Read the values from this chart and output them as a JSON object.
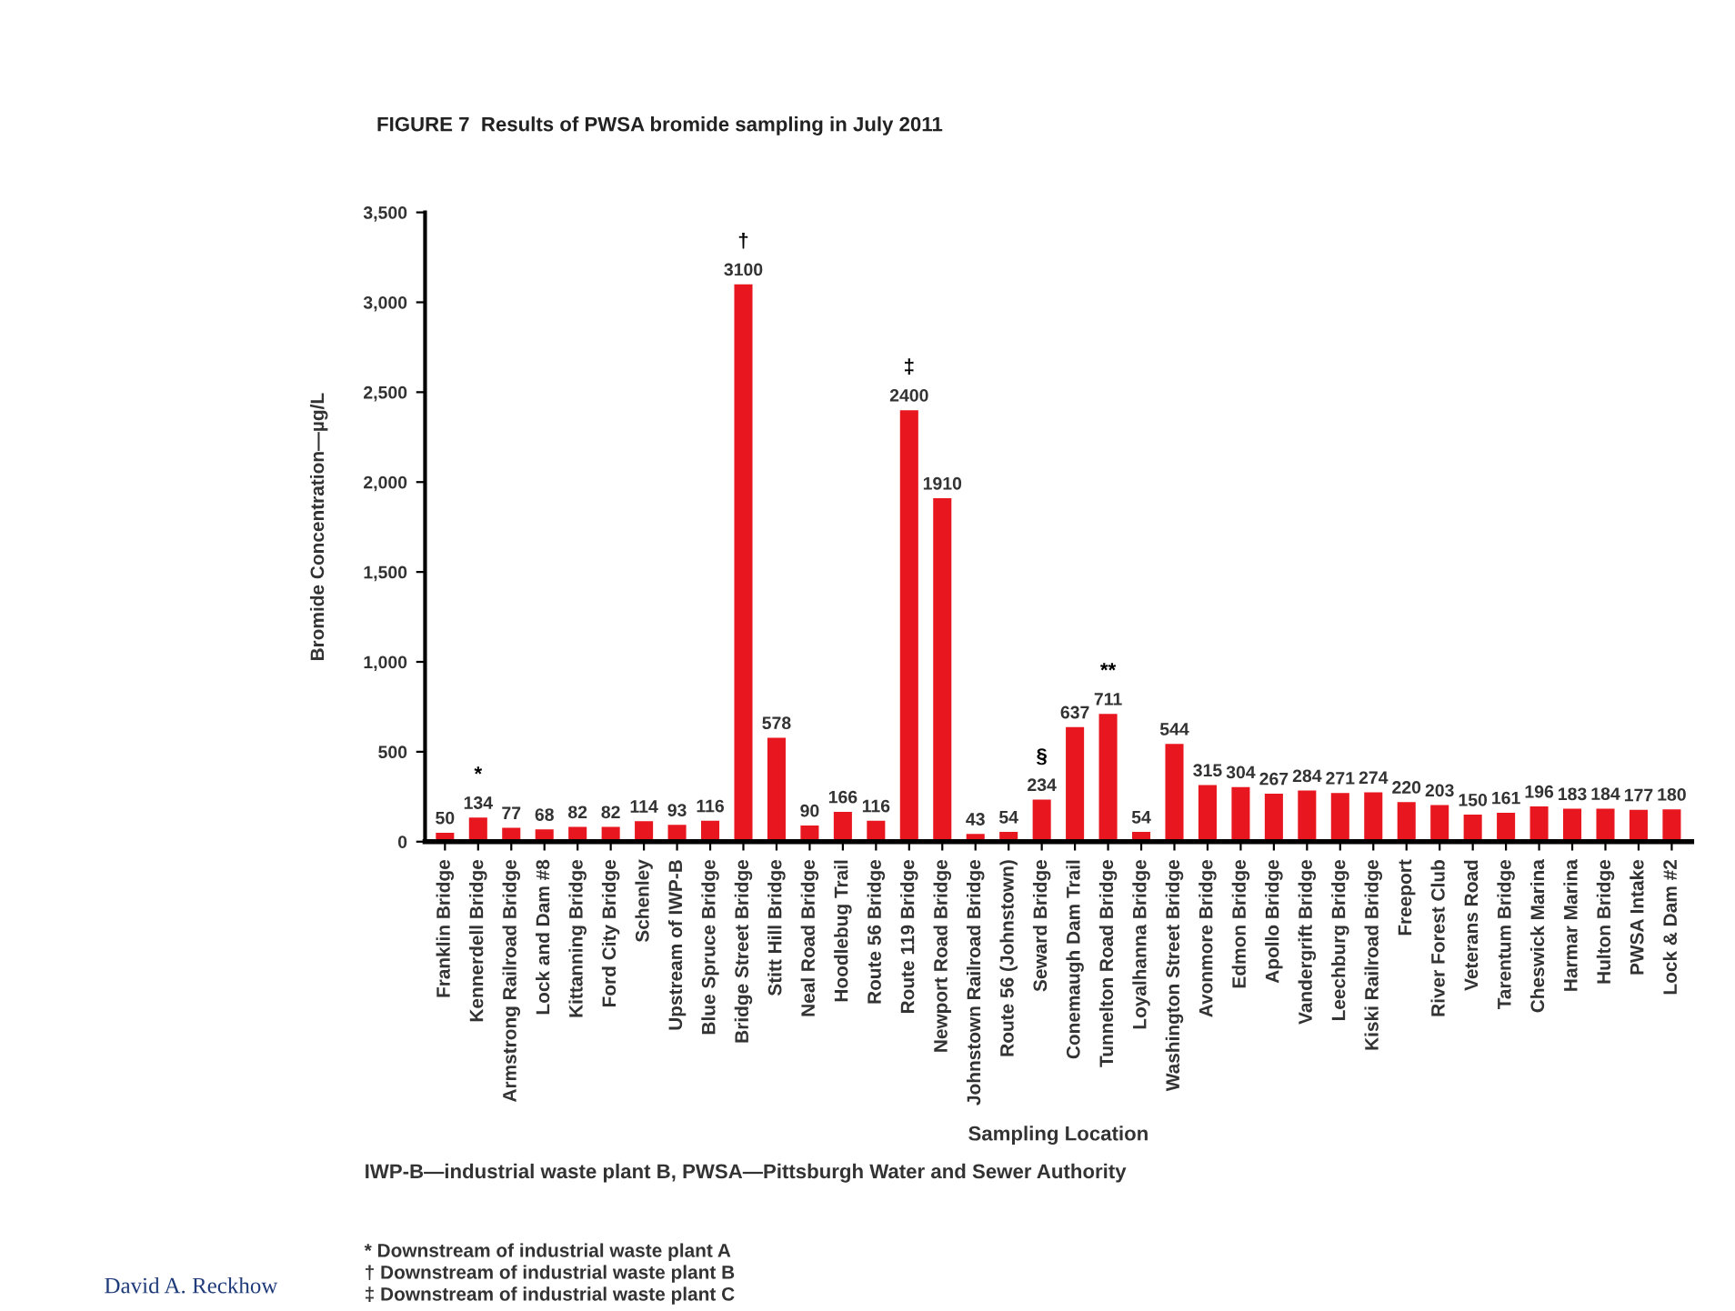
{
  "chart_data": {
    "type": "bar",
    "title": "FIGURE 7  Results of PWSA bromide sampling in July 2011",
    "xlabel": "Sampling Location",
    "ylabel": "Bromide Concentration—µg/L",
    "categories": [
      "Franklin Bridge",
      "Kennerdell Bridge",
      "Armstrong Railroad Bridge",
      "Lock and Dam #8",
      "Kittanning Bridge",
      "Ford City Bridge",
      "Schenley",
      "Upstream of IWP-B",
      "Blue Spruce Bridge",
      "Bridge Street Bridge",
      "Stitt Hill Bridge",
      "Neal Road Bridge",
      "Hoodlebug Trail",
      "Route 56 Bridge",
      "Route 119 Bridge",
      "Newport Road Bridge",
      "Johnstown Railroad Bridge",
      "Route 56 (Johnstown)",
      "Seward Bridge",
      "Conemaugh Dam Trail",
      "Tunnelton Road Bridge",
      "Loyalhanna Bridge",
      "Washington Street Bridge",
      "Avonmore Bridge",
      "Edmon Bridge",
      "Apollo Bridge",
      "Vandergrift Bridge",
      "Leechburg Bridge",
      "Kiski Railroad Bridge",
      "Freeport",
      "River Forest Club",
      "Veterans Road",
      "Tarentum Bridge",
      "Cheswick Marina",
      "Harmar Marina",
      "Hulton Bridge",
      "PWSA Intake",
      "Lock & Dam #2"
    ],
    "values": [
      50,
      134,
      77,
      68,
      82,
      82,
      114,
      93,
      116,
      3100,
      578,
      90,
      166,
      116,
      2400,
      1910,
      43,
      54,
      234,
      637,
      711,
      54,
      544,
      315,
      304,
      267,
      284,
      271,
      274,
      220,
      203,
      150,
      161,
      196,
      183,
      184,
      177,
      180
    ],
    "color": "#e8161e",
    "data_labels": true,
    "ylim": [
      0,
      3500
    ],
    "yticks": [
      0,
      {
        "value": 500,
        "label": "500"
      },
      {
        "value": 1000,
        "label": "1,000"
      },
      {
        "value": 1500,
        "label": "1,500"
      },
      {
        "value": 2000,
        "label": "2,000"
      },
      {
        "value": 2500,
        "label": "2,500"
      },
      {
        "value": 3000,
        "label": "3,000"
      },
      {
        "value": 3500,
        "label": "3,500"
      }
    ],
    "grid": false,
    "legend": false,
    "annotations": [
      {
        "text": "*",
        "x": "Kennerdell Bridge",
        "y": 134
      },
      {
        "text": "†",
        "x": "Bridge Street Bridge",
        "y": 3100
      },
      {
        "text": "‡",
        "x": "Route 119 Bridge",
        "y": 2400
      },
      {
        "text": "§",
        "x": "Seward Bridge",
        "y": 234
      },
      {
        "text": "**",
        "x": "Tunnelton Road Bridge",
        "y": 711
      },
      "IWP-B—industrial waste plant B, PWSA—Pittsburgh Water and Sewer Authority",
      "* Downstream of industrial waste plant A\n† Downstream of industrial waste plant B\n‡ Downstream of industrial waste plant C",
      "David A. Reckhow"
    ]
  }
}
